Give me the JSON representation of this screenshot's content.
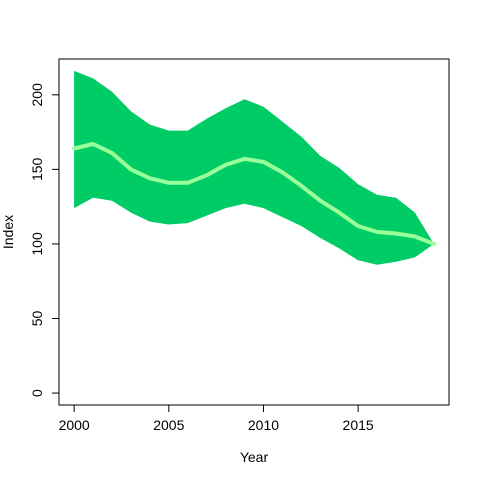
{
  "chart_data": {
    "type": "area",
    "title": "",
    "xlabel": "Year",
    "ylabel": "Index",
    "xlim": [
      1999.2,
      2019.8
    ],
    "ylim": [
      -8,
      224
    ],
    "xticks": [
      2000,
      2005,
      2010,
      2015
    ],
    "yticks": [
      0,
      50,
      100,
      150,
      200
    ],
    "grid": false,
    "legend": "none",
    "x": [
      2000,
      2001,
      2002,
      2003,
      2004,
      2005,
      2006,
      2007,
      2008,
      2009,
      2010,
      2011,
      2012,
      2013,
      2014,
      2015,
      2016,
      2017,
      2018,
      2019
    ],
    "series": [
      {
        "role": "band",
        "color": "#00cc66",
        "upper": [
          216,
          211,
          202,
          189,
          180,
          176,
          176,
          184,
          191,
          197,
          192,
          182,
          172,
          159,
          151,
          140,
          133,
          131,
          121,
          100
        ],
        "lower": [
          124,
          131,
          129,
          121,
          115,
          113,
          114,
          119,
          124,
          127,
          124,
          118,
          112,
          104,
          97,
          89,
          86,
          88,
          91,
          100
        ]
      },
      {
        "role": "line",
        "color": "#99ff99",
        "values": [
          164,
          167,
          161,
          150,
          144,
          141,
          141,
          146,
          153,
          157,
          155,
          148,
          139,
          129,
          121,
          112,
          108,
          107,
          105,
          100
        ]
      }
    ]
  }
}
